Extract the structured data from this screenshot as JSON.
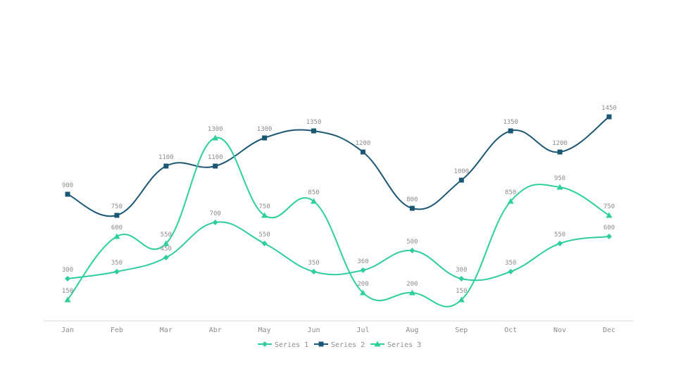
{
  "chart_data": {
    "type": "line",
    "smooth": true,
    "title": "",
    "xlabel": "",
    "ylabel": "",
    "ylim": [
      0,
      1600
    ],
    "grid": false,
    "legend": "bottom",
    "categories": [
      "Jan",
      "Feb",
      "Mar",
      "Abr",
      "May",
      "Jun",
      "Jul",
      "Aug",
      "Sep",
      "Oct",
      "Nov",
      "Dec"
    ],
    "series": [
      {
        "name": "Series 1",
        "color": "#2ecc9f",
        "marker": "diamond",
        "values": [
          300,
          350,
          450,
          700,
          550,
          350,
          360,
          500,
          300,
          350,
          550,
          600
        ]
      },
      {
        "name": "Series 2",
        "color": "#1b5672",
        "marker": "square",
        "values": [
          900,
          750,
          1100,
          1100,
          1300,
          1350,
          1200,
          800,
          1000,
          1350,
          1200,
          1450
        ]
      },
      {
        "name": "Series 3",
        "color": "#2fcf9c",
        "marker": "triangle",
        "values": [
          150,
          600,
          550,
          1300,
          750,
          850,
          200,
          200,
          150,
          850,
          950,
          750
        ]
      }
    ]
  }
}
